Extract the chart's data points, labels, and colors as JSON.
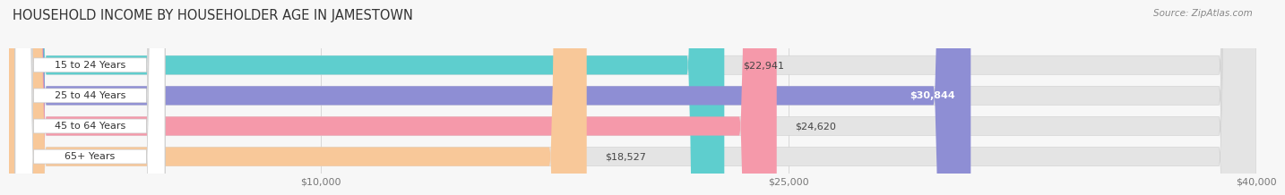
{
  "title": "HOUSEHOLD INCOME BY HOUSEHOLDER AGE IN JAMESTOWN",
  "source": "Source: ZipAtlas.com",
  "categories": [
    "15 to 24 Years",
    "25 to 44 Years",
    "45 to 64 Years",
    "65+ Years"
  ],
  "values": [
    22941,
    30844,
    24620,
    18527
  ],
  "bar_colors": [
    "#5ecece",
    "#8e8ed4",
    "#f599aa",
    "#f8c899"
  ],
  "label_bg_colors": [
    "#e8f8f8",
    "#e0e0f5",
    "#fde8ee",
    "#fef0e0"
  ],
  "value_label_colors": [
    "#444444",
    "#ffffff",
    "#444444",
    "#444444"
  ],
  "value_labels": [
    "$22,941",
    "$30,844",
    "$24,620",
    "$18,527"
  ],
  "xlim": [
    0,
    40000
  ],
  "xticks": [
    10000,
    25000,
    40000
  ],
  "xtick_labels": [
    "$10,000",
    "$25,000",
    "$40,000"
  ],
  "background_color": "#f7f7f7",
  "bar_bg_color": "#e4e4e4",
  "title_fontsize": 10.5,
  "source_fontsize": 7.5,
  "label_fontsize": 8,
  "value_fontsize": 8,
  "bar_height": 0.62
}
